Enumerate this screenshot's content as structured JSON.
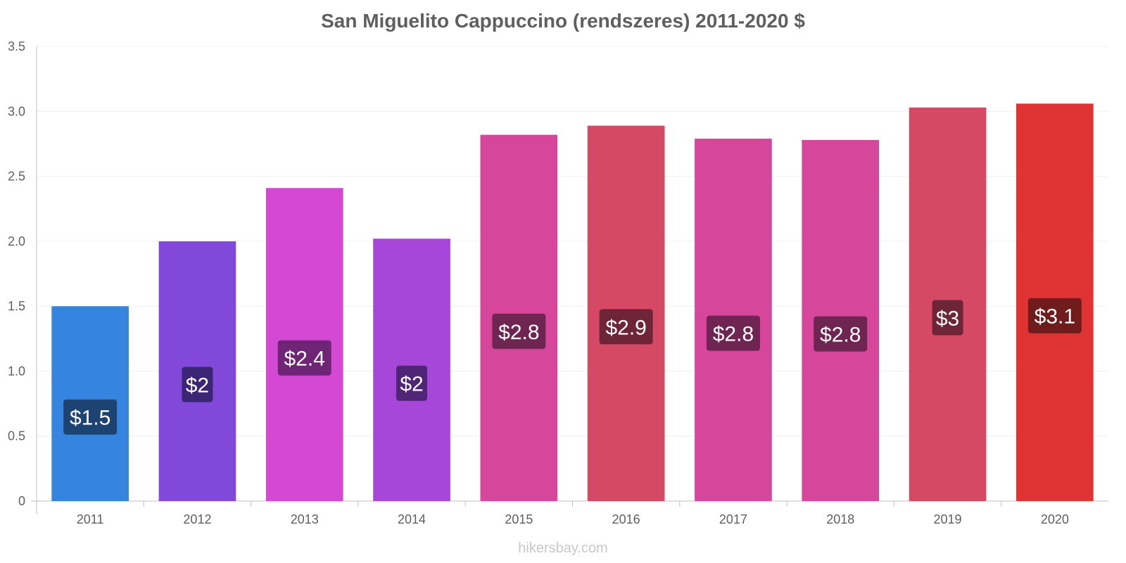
{
  "chart_data": {
    "type": "bar",
    "title": "San Miguelito Cappuccino (rendszeres) 2011-2020 $",
    "xlabel": "",
    "ylabel": "",
    "ylim": [
      0,
      3.5
    ],
    "yticks": [
      "0",
      "0.5",
      "1.0",
      "1.5",
      "2.0",
      "2.5",
      "3.0",
      "3.5"
    ],
    "yticks_values": [
      0,
      0.5,
      1.0,
      1.5,
      2.0,
      2.5,
      3.0,
      3.5
    ],
    "grid": true,
    "legend": "none",
    "categories": [
      "2011",
      "2012",
      "2013",
      "2014",
      "2015",
      "2016",
      "2017",
      "2018",
      "2019",
      "2020"
    ],
    "values": [
      1.5,
      2.0,
      2.41,
      2.02,
      2.82,
      2.89,
      2.79,
      2.78,
      3.03,
      3.06
    ],
    "data_labels": [
      "$1.5",
      "$2",
      "$2.4",
      "$2",
      "$2.8",
      "$2.9",
      "$2.8",
      "$2.8",
      "$3",
      "$3.1"
    ],
    "bar_colors": [
      "#3484e0",
      "#8148d9",
      "#d449d4",
      "#a647da",
      "#d6479c",
      "#d64965",
      "#d6479c",
      "#d6479c",
      "#d64965",
      "#e03434"
    ],
    "label_bg_colors": [
      "#1c4371",
      "#3d2575",
      "#6e2575",
      "#4f2575",
      "#6e2552",
      "#6e2538",
      "#6e2552",
      "#6e2552",
      "#6e2538",
      "#701c1c"
    ]
  },
  "watermark": "hikersbay.com"
}
